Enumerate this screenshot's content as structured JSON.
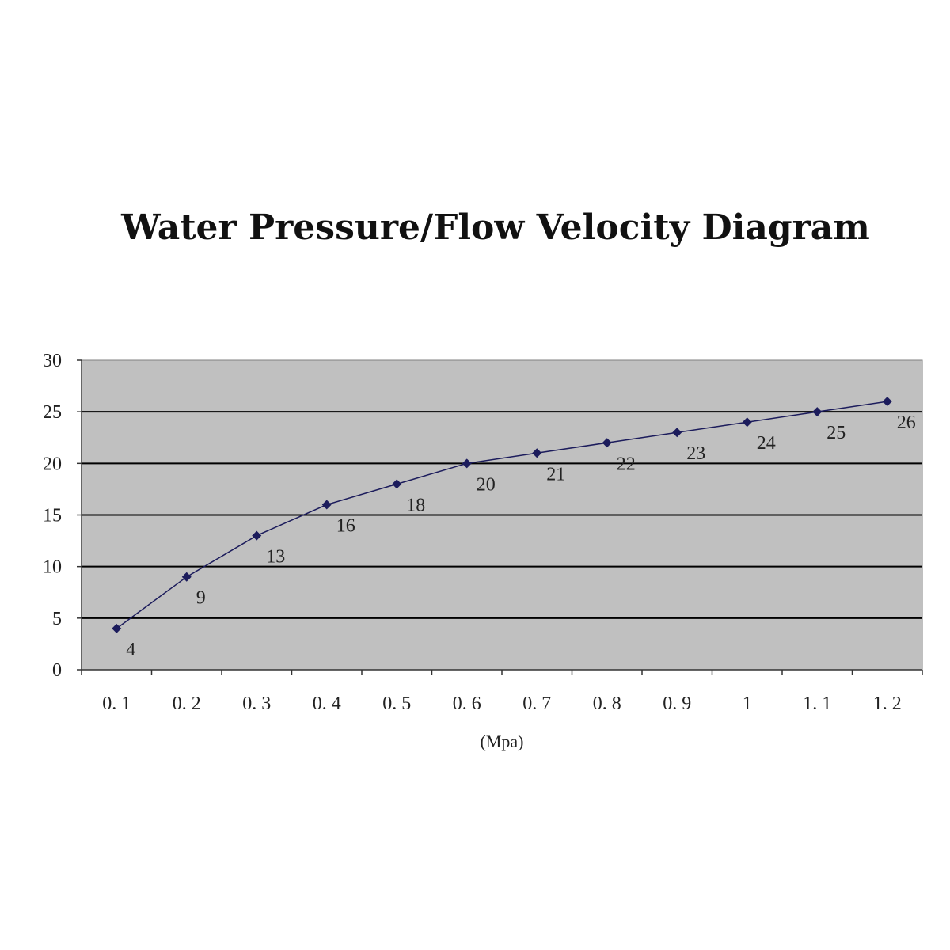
{
  "chart_data": {
    "type": "line",
    "title": "Water Pressure/Flow Velocity Diagram",
    "xlabel": "(Mpa)",
    "ylabel": "",
    "categories": [
      "0. 1",
      "0. 2",
      "0. 3",
      "0. 4",
      "0. 5",
      "0. 6",
      "0. 7",
      "0. 8",
      "0. 9",
      "1",
      "1. 1",
      "1. 2"
    ],
    "x": [
      0.1,
      0.2,
      0.3,
      0.4,
      0.5,
      0.6,
      0.7,
      0.8,
      0.9,
      1.0,
      1.1,
      1.2
    ],
    "series": [
      {
        "values": [
          4,
          9,
          13,
          16,
          18,
          20,
          21,
          22,
          23,
          24,
          25,
          26
        ],
        "color": "#1c1c5c",
        "marker": "diamond"
      }
    ],
    "data_labels": [
      "4",
      "9",
      "13",
      "16",
      "18",
      "20",
      "21",
      "22",
      "23",
      "24",
      "25",
      "26"
    ],
    "ylim": [
      0,
      30
    ],
    "yticks": [
      "0",
      "5",
      "10",
      "15",
      "20",
      "25",
      "30"
    ],
    "grid": true,
    "plot_background": "#c0c0c0",
    "gridline_color": "#000000",
    "legend": "none"
  }
}
